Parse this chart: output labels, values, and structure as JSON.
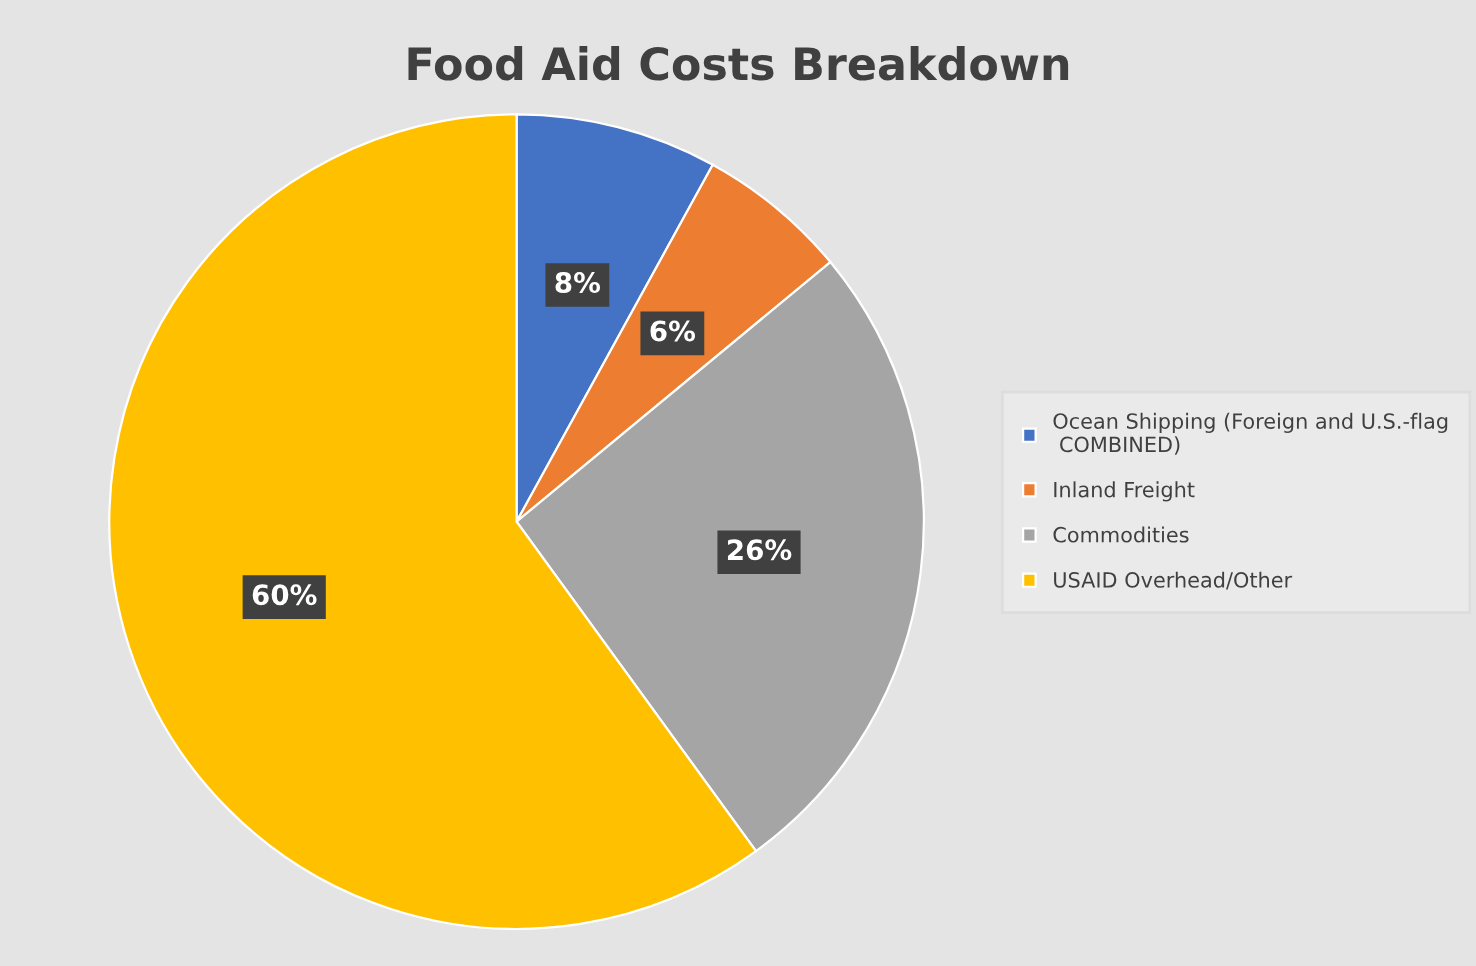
{
  "chart_data": {
    "type": "pie",
    "title": "Food Aid Costs Breakdown",
    "categories": [
      "Ocean Shipping (Foreign and U.S.-flag COMBINED)",
      "Inland Freight",
      "Commodities",
      "USAID Overhead/Other"
    ],
    "values": [
      8,
      6,
      26,
      60
    ],
    "colors": [
      "#4472c4",
      "#ed7d31",
      "#a5a5a5",
      "#ffc000"
    ],
    "value_labels": [
      "8%",
      "6%",
      "26%",
      "60%"
    ],
    "legend": "right"
  }
}
